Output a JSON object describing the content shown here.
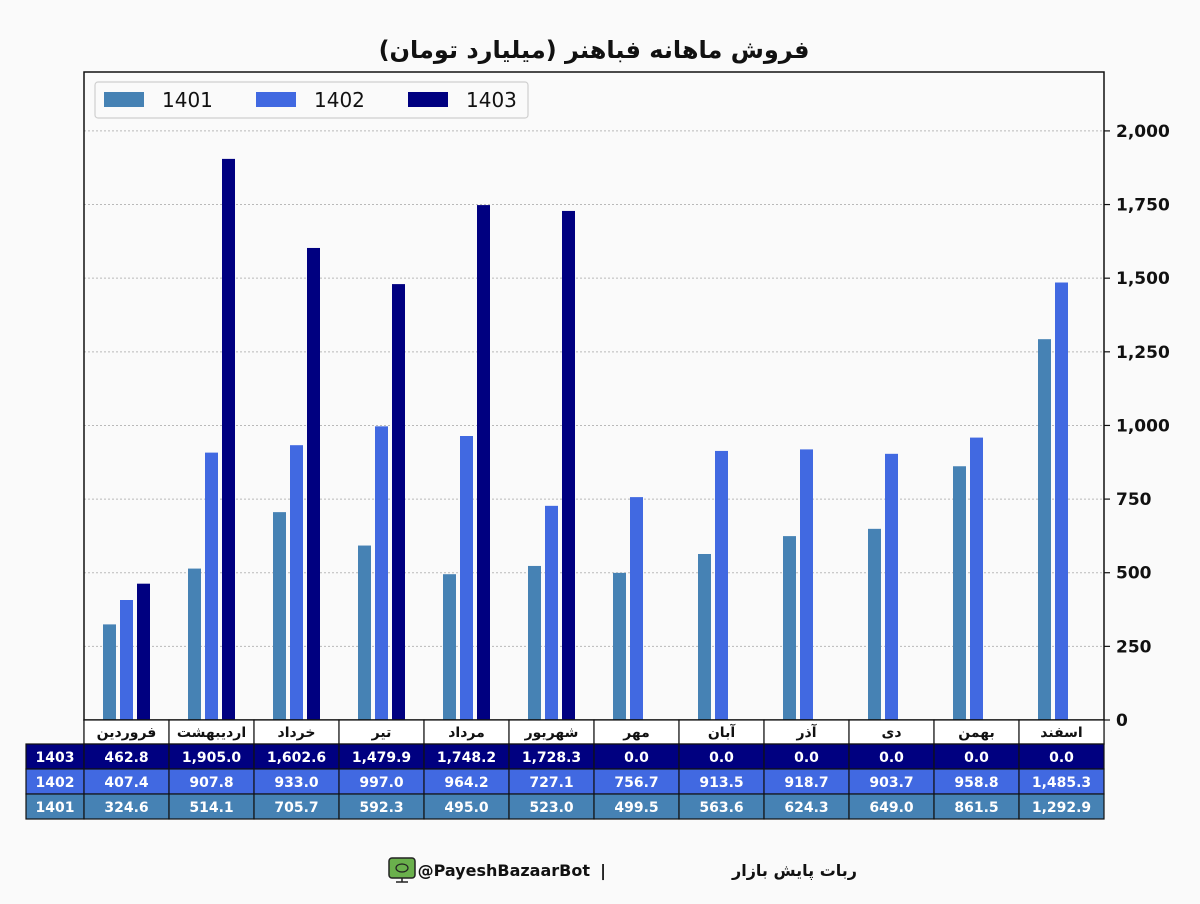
{
  "chart_data": {
    "type": "bar",
    "title": "فروش ماهانه فباهنر (میلیارد تومان)",
    "categories": [
      "فروردین",
      "اردیبهشت",
      "خرداد",
      "تیر",
      "مرداد",
      "شهریور",
      "مهر",
      "آبان",
      "آذر",
      "دی",
      "بهمن",
      "اسفند"
    ],
    "series": [
      {
        "name": "1401",
        "color": "#4682b4",
        "values": [
          324.6,
          514.1,
          705.7,
          592.3,
          495.0,
          523.0,
          499.5,
          563.6,
          624.3,
          649.0,
          861.5,
          1292.9
        ]
      },
      {
        "name": "1402",
        "color": "#4169e1",
        "values": [
          407.4,
          907.8,
          933.0,
          997.0,
          964.2,
          727.1,
          756.7,
          913.5,
          918.7,
          903.7,
          958.8,
          1485.3
        ]
      },
      {
        "name": "1403",
        "color": "#000080",
        "values": [
          462.8,
          1905.0,
          1602.6,
          1479.9,
          1748.2,
          1728.3,
          0.0,
          0.0,
          0.0,
          0.0,
          0.0,
          0.0
        ]
      }
    ],
    "ylim": [
      0,
      2200
    ],
    "yticks": [
      0,
      250,
      500,
      750,
      1000,
      1250,
      1500,
      1750,
      2000
    ],
    "ytick_labels": [
      "0",
      "250",
      "500",
      "750",
      "1,000",
      "1,250",
      "1,500",
      "1,750",
      "2,000"
    ],
    "xlabel": "",
    "ylabel": "",
    "grid": "horizontal dotted",
    "legend_position": "top-left",
    "y_axis_side": "right",
    "table": {
      "row_order": [
        "1403",
        "1402",
        "1401"
      ],
      "rows": {
        "1403": [
          "462.8",
          "1,905.0",
          "1,602.6",
          "1,479.9",
          "1,748.2",
          "1,728.3",
          "0.0",
          "0.0",
          "0.0",
          "0.0",
          "0.0",
          "0.0"
        ],
        "1402": [
          "407.4",
          "907.8",
          "933.0",
          "997.0",
          "964.2",
          "727.1",
          "756.7",
          "913.5",
          "918.7",
          "903.7",
          "958.8",
          "1,485.3"
        ],
        "1401": [
          "324.6",
          "514.1",
          "705.7",
          "592.3",
          "495.0",
          "523.0",
          "499.5",
          "563.6",
          "624.3",
          "649.0",
          "861.5",
          "1,292.9"
        ]
      }
    }
  },
  "footer": {
    "bot_name": "ربات پایش بازار",
    "separator": "|",
    "handle": "@PayeshBazaarBot",
    "icon": "tv-icon",
    "icon_color": "#6ab04c"
  }
}
